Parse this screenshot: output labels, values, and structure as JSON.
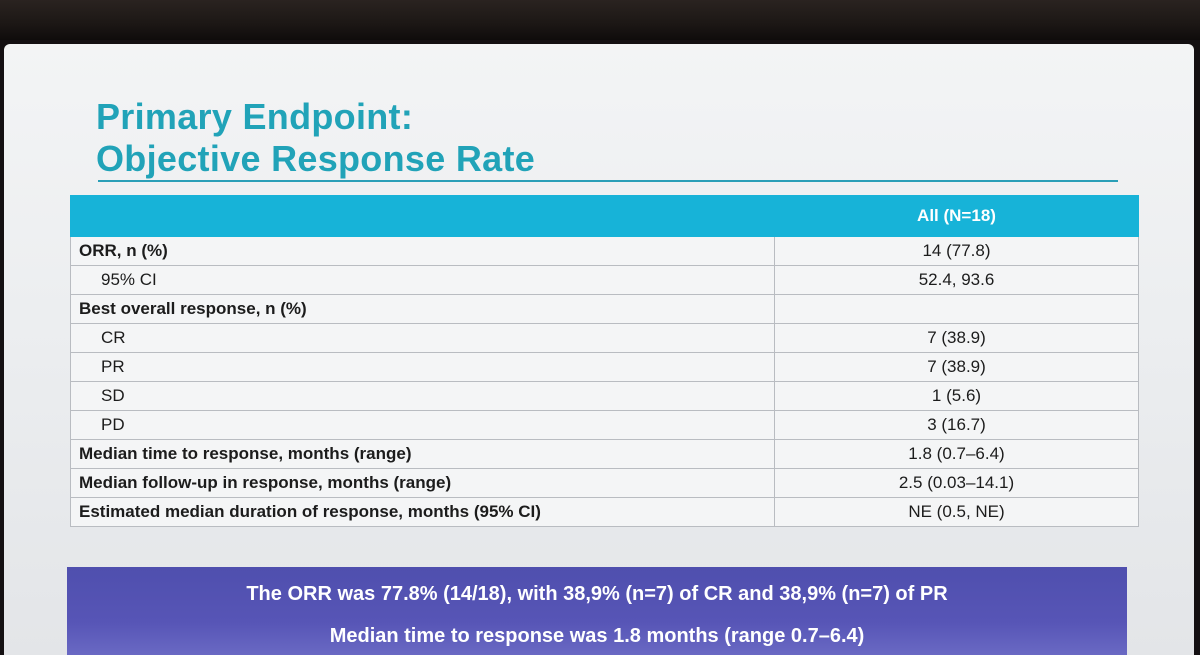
{
  "title": {
    "line1": "Primary Endpoint:",
    "line2": "Objective Response Rate"
  },
  "table": {
    "header": [
      "",
      "All (N=18)"
    ],
    "rows": [
      {
        "label": "ORR, n (%)",
        "value": "14 (77.8)",
        "bold": true,
        "indent": false
      },
      {
        "label": "95% CI",
        "value": "52.4, 93.6",
        "bold": false,
        "indent": true
      },
      {
        "label": "Best overall response, n (%)",
        "value": "",
        "bold": true,
        "indent": false
      },
      {
        "label": "CR",
        "value": "7 (38.9)",
        "bold": false,
        "indent": true
      },
      {
        "label": "PR",
        "value": "7 (38.9)",
        "bold": false,
        "indent": true
      },
      {
        "label": "SD",
        "value": "1 (5.6)",
        "bold": false,
        "indent": true
      },
      {
        "label": "PD",
        "value": "3 (16.7)",
        "bold": false,
        "indent": true
      },
      {
        "label": "Median time to response, months (range)",
        "value": "1.8 (0.7–6.4)",
        "bold": true,
        "indent": false
      },
      {
        "label": "Median follow-up in response, months (range)",
        "value": "2.5 (0.03–14.1)",
        "bold": true,
        "indent": false
      },
      {
        "label": "Estimated median duration of response, months (95% CI)",
        "value": "NE (0.5, NE)",
        "bold": true,
        "indent": false
      }
    ]
  },
  "summary": {
    "line1": "The ORR was 77.8% (14/18), with 38,9% (n=7) of CR and 38,9% (n=7) of PR",
    "line2": "Median time to response was 1.8 months (range 0.7–6.4)"
  },
  "colors": {
    "title": "#21a3b8",
    "header_fill": "#17b3d8",
    "summary_fill": "#5755b6"
  }
}
